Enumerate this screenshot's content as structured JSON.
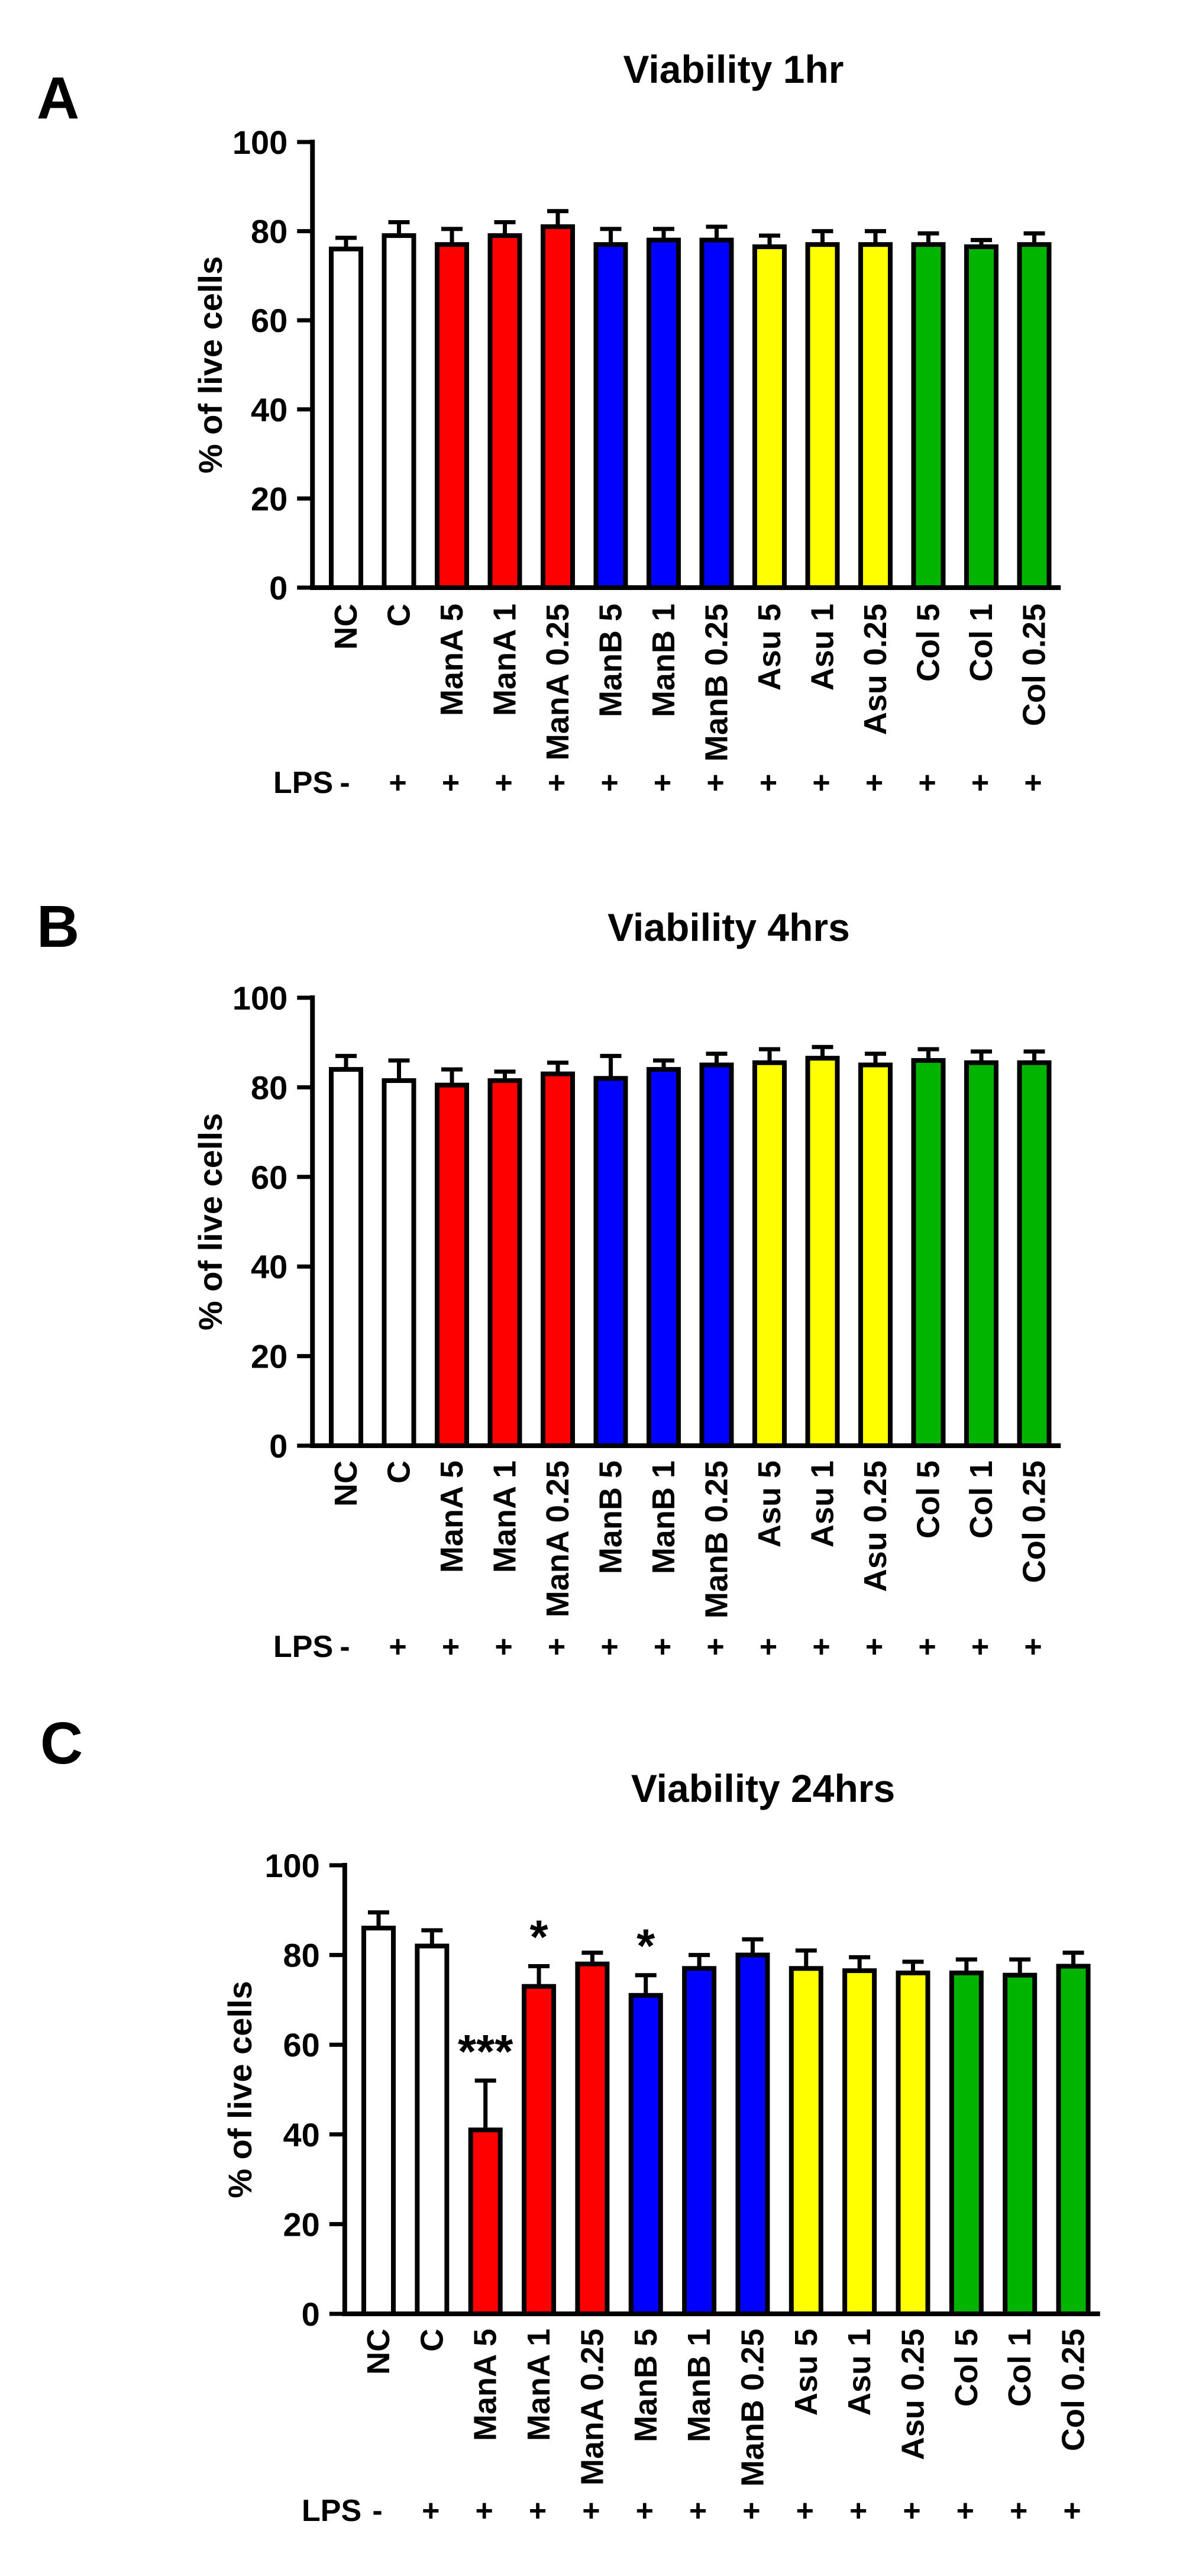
{
  "panels": [
    {
      "letter": "A",
      "chart_data": {
        "type": "bar",
        "title": "Viability 1hr",
        "ylabel": "% of live cells",
        "xlabel": "",
        "ylim": [
          0,
          100
        ],
        "yticks": [
          0,
          20,
          40,
          60,
          80,
          100
        ],
        "categories": [
          "NC",
          "C",
          "ManA 5",
          "ManA 1",
          "ManA 0.25",
          "ManB 5",
          "ManB 1",
          "ManB 0.25",
          "Asu 5",
          "Asu 1",
          "Asu 0.25",
          "Col 5",
          "Col 1",
          "Col 0.25"
        ],
        "values": [
          76,
          79,
          77,
          79,
          81,
          77,
          78,
          78,
          76.5,
          77,
          77,
          77,
          76.5,
          77
        ],
        "errors": [
          2.5,
          3,
          3.5,
          3,
          3.5,
          3.5,
          2.5,
          3,
          2.5,
          3,
          3,
          2.5,
          1.5,
          2.5
        ],
        "colors": [
          "#ffffff",
          "#ffffff",
          "#ff0000",
          "#ff0000",
          "#ff0000",
          "#0000ff",
          "#0000ff",
          "#0000ff",
          "#ffff00",
          "#ffff00",
          "#ffff00",
          "#00b400",
          "#00b400",
          "#00b400"
        ],
        "lps_label": "LPS",
        "lps": [
          "-",
          "+",
          "+",
          "+",
          "+",
          "+",
          "+",
          "+",
          "+",
          "+",
          "+",
          "+",
          "+",
          "+"
        ],
        "annotations": [
          "",
          "",
          "",
          "",
          "",
          "",
          "",
          "",
          "",
          "",
          "",
          "",
          "",
          ""
        ]
      }
    },
    {
      "letter": "B",
      "chart_data": {
        "type": "bar",
        "title": "Viability 4hrs",
        "ylabel": "% of live cells",
        "xlabel": "",
        "ylim": [
          0,
          100
        ],
        "yticks": [
          0,
          20,
          40,
          60,
          80,
          100
        ],
        "categories": [
          "NC",
          "C",
          "ManA 5",
          "ManA 1",
          "ManA 0.25",
          "ManB 5",
          "ManB 1",
          "ManB 0.25",
          "Asu 5",
          "Asu 1",
          "Asu 0.25",
          "Col 5",
          "Col 1",
          "Col 0.25"
        ],
        "values": [
          84,
          81.5,
          80.5,
          81.5,
          83,
          82,
          84,
          85,
          85.5,
          86.5,
          85,
          86,
          85.5,
          85.5
        ],
        "errors": [
          3,
          4.5,
          3.5,
          2,
          2.5,
          5,
          2,
          2.5,
          3,
          2.5,
          2.5,
          2.5,
          2.5,
          2.5
        ],
        "colors": [
          "#ffffff",
          "#ffffff",
          "#ff0000",
          "#ff0000",
          "#ff0000",
          "#0000ff",
          "#0000ff",
          "#0000ff",
          "#ffff00",
          "#ffff00",
          "#ffff00",
          "#00b400",
          "#00b400",
          "#00b400"
        ],
        "lps_label": "LPS",
        "lps": [
          "-",
          "+",
          "+",
          "+",
          "+",
          "+",
          "+",
          "+",
          "+",
          "+",
          "+",
          "+",
          "+",
          "+"
        ],
        "annotations": [
          "",
          "",
          "",
          "",
          "",
          "",
          "",
          "",
          "",
          "",
          "",
          "",
          "",
          ""
        ]
      }
    },
    {
      "letter": "C",
      "chart_data": {
        "type": "bar",
        "title": "Viability 24hrs",
        "ylabel": "% of live cells",
        "xlabel": "",
        "ylim": [
          0,
          100
        ],
        "yticks": [
          0,
          20,
          40,
          60,
          80,
          100
        ],
        "categories": [
          "NC",
          "C",
          "ManA 5",
          "ManA 1",
          "ManA 0.25",
          "ManB 5",
          "ManB 1",
          "ManB 0.25",
          "Asu 5",
          "Asu 1",
          "Asu 0.25",
          "Col 5",
          "Col 1",
          "Col 0.25"
        ],
        "values": [
          86,
          82,
          41,
          73,
          78,
          71,
          77,
          80,
          77,
          76.5,
          76,
          76,
          75.5,
          77.5
        ],
        "errors": [
          3.5,
          3.5,
          11,
          4.5,
          2.5,
          4.5,
          3,
          3.5,
          4,
          3,
          2.5,
          3,
          3.5,
          3
        ],
        "colors": [
          "#ffffff",
          "#ffffff",
          "#ff0000",
          "#ff0000",
          "#ff0000",
          "#0000ff",
          "#0000ff",
          "#0000ff",
          "#ffff00",
          "#ffff00",
          "#ffff00",
          "#00b400",
          "#00b400",
          "#00b400"
        ],
        "lps_label": "LPS",
        "lps": [
          "-",
          "+",
          "+",
          "+",
          "+",
          "+",
          "+",
          "+",
          "+",
          "+",
          "+",
          "+",
          "+",
          "+"
        ],
        "annotations": [
          "",
          "",
          "***",
          "*",
          "",
          "*",
          "",
          "",
          "",
          "",
          "",
          "",
          "",
          ""
        ]
      }
    }
  ]
}
